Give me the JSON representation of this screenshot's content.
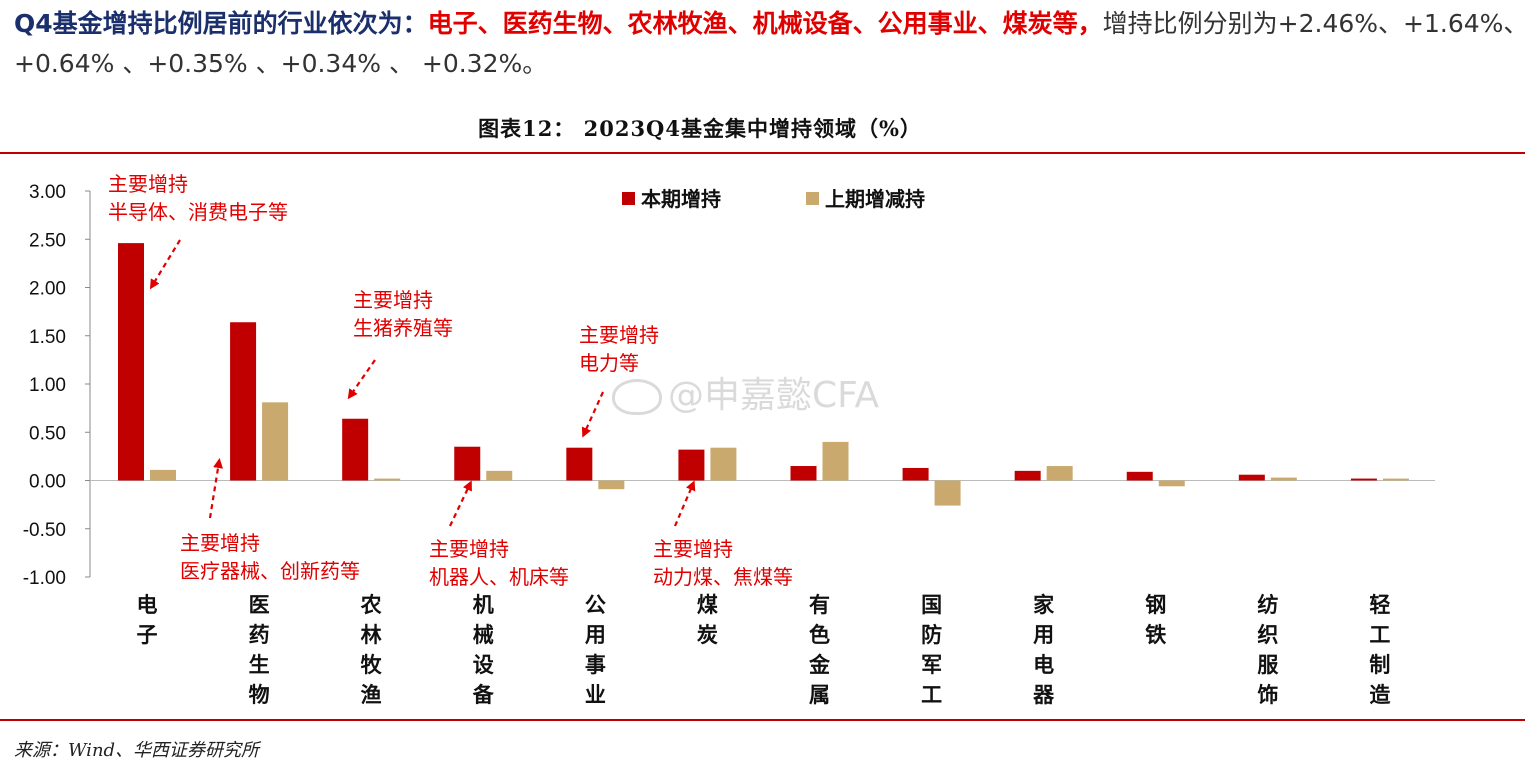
{
  "headline": {
    "lead": "Q4基金增持比例居前的行业依次为：",
    "highlight": "电子、医药生物、农林牧渔、机械设备、公用事业、煤炭等，",
    "tail": "增持比例分别为+2.46%、+1.64%、 +0.64% 、+0.35% 、+0.34% 、 +0.32%。"
  },
  "watermark": "@申嘉懿CFA",
  "source": "来源：Wind、华西证券研究所",
  "colors": {
    "current": "#c00000",
    "previous": "#c9a96e",
    "annotation": "#e00000",
    "rule": "#c00000"
  },
  "chart_data": {
    "type": "bar",
    "title": "图表12：   2023Q4基金集中增持领域（%）",
    "categories": [
      "电子",
      "医药生物",
      "农林牧渔",
      "机械设备",
      "公用事业",
      "煤炭",
      "有色金属",
      "国防军工",
      "家用电器",
      "钢铁",
      "纺织服饰",
      "轻工制造"
    ],
    "series": [
      {
        "name": "本期增持",
        "values": [
          2.46,
          1.64,
          0.64,
          0.35,
          0.34,
          0.32,
          0.15,
          0.13,
          0.1,
          0.09,
          0.06,
          0.02
        ]
      },
      {
        "name": "上期增减持",
        "values": [
          0.11,
          0.81,
          0.02,
          0.1,
          -0.09,
          0.34,
          0.4,
          -0.26,
          0.15,
          -0.06,
          0.03,
          0.02
        ]
      }
    ],
    "ylim": [
      -1.0,
      3.0
    ],
    "yticks": [
      "3.00",
      "2.50",
      "2.00",
      "1.50",
      "1.00",
      "0.50",
      "0.00",
      "-0.50",
      "-1.00"
    ],
    "ytick_values": [
      3.0,
      2.5,
      2.0,
      1.5,
      1.0,
      0.5,
      0.0,
      -0.5,
      -1.0
    ],
    "legend_placement": "top-center",
    "grid": false,
    "annotations": [
      {
        "lines": [
          "主要增持",
          "半导体、消费电子等"
        ],
        "category": "电子",
        "position": "above"
      },
      {
        "lines": [
          "主要增持",
          "医疗器械、创新药等"
        ],
        "category": "医药生物",
        "position": "below"
      },
      {
        "lines": [
          "主要增持",
          "生猪养殖等"
        ],
        "category": "农林牧渔",
        "position": "above"
      },
      {
        "lines": [
          "主要增持",
          "机器人、机床等"
        ],
        "category": "机械设备",
        "position": "below"
      },
      {
        "lines": [
          "主要增持",
          "电力等"
        ],
        "category": "公用事业",
        "position": "above"
      },
      {
        "lines": [
          "主要增持",
          "动力煤、焦煤等"
        ],
        "category": "煤炭",
        "position": "below"
      }
    ]
  }
}
